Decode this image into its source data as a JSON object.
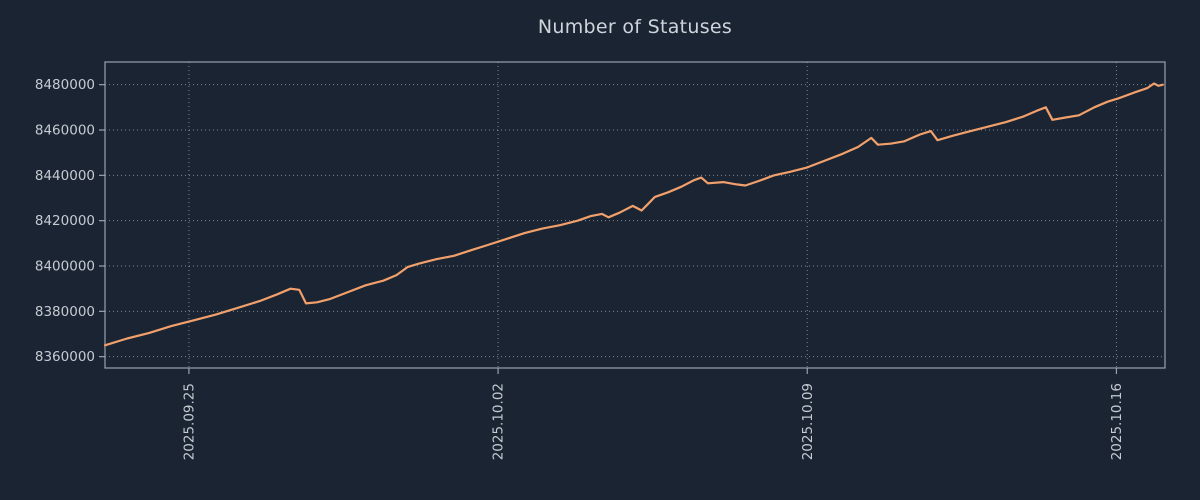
{
  "chart_data": {
    "type": "line",
    "title": "Number of Statuses",
    "xlabel": "",
    "ylabel": "",
    "legend": null,
    "grid": "dotted",
    "colors": {
      "background": "#1a2433",
      "line": "#f2a06b",
      "grid": "#e1e7ee",
      "frame": "#9aa2ac",
      "text": "#c6cbd2"
    },
    "ylim": [
      8355000,
      8490000
    ],
    "xlim_days": [
      -1.9,
      22.1
    ],
    "y_ticks": [
      8360000,
      8380000,
      8400000,
      8420000,
      8440000,
      8460000,
      8480000
    ],
    "x_ticks": [
      {
        "label": "2025.09.25",
        "day": 0
      },
      {
        "label": "2025.10.02",
        "day": 7
      },
      {
        "label": "2025.10.09",
        "day": 14
      },
      {
        "label": "2025.10.16",
        "day": 21
      }
    ],
    "points": [
      [
        -1.9,
        8365000
      ],
      [
        -1.4,
        8368000
      ],
      [
        -0.9,
        8370500
      ],
      [
        -0.4,
        8373500
      ],
      [
        0.1,
        8376000
      ],
      [
        0.6,
        8378500
      ],
      [
        1.1,
        8381500
      ],
      [
        1.6,
        8384500
      ],
      [
        2.0,
        8387500
      ],
      [
        2.3,
        8390000
      ],
      [
        2.5,
        8389500
      ],
      [
        2.65,
        8383500
      ],
      [
        2.9,
        8384000
      ],
      [
        3.2,
        8385500
      ],
      [
        3.6,
        8388500
      ],
      [
        4.0,
        8391500
      ],
      [
        4.4,
        8393500
      ],
      [
        4.7,
        8396000
      ],
      [
        4.95,
        8399500
      ],
      [
        5.2,
        8401000
      ],
      [
        5.6,
        8403000
      ],
      [
        6.0,
        8404500
      ],
      [
        6.4,
        8407000
      ],
      [
        6.8,
        8409500
      ],
      [
        7.2,
        8412000
      ],
      [
        7.6,
        8414500
      ],
      [
        8.0,
        8416500
      ],
      [
        8.4,
        8418000
      ],
      [
        8.8,
        8420000
      ],
      [
        9.1,
        8422000
      ],
      [
        9.35,
        8423000
      ],
      [
        9.5,
        8421500
      ],
      [
        9.75,
        8423500
      ],
      [
        10.05,
        8426500
      ],
      [
        10.25,
        8424500
      ],
      [
        10.4,
        8427500
      ],
      [
        10.55,
        8430500
      ],
      [
        10.85,
        8432500
      ],
      [
        11.15,
        8435000
      ],
      [
        11.45,
        8438000
      ],
      [
        11.6,
        8439000
      ],
      [
        11.75,
        8436500
      ],
      [
        12.1,
        8437000
      ],
      [
        12.4,
        8436000
      ],
      [
        12.6,
        8435500
      ],
      [
        12.9,
        8437500
      ],
      [
        13.25,
        8440000
      ],
      [
        13.6,
        8441500
      ],
      [
        14.0,
        8443500
      ],
      [
        14.4,
        8446500
      ],
      [
        14.8,
        8449500
      ],
      [
        15.15,
        8452500
      ],
      [
        15.45,
        8456500
      ],
      [
        15.6,
        8453500
      ],
      [
        15.9,
        8454000
      ],
      [
        16.2,
        8455000
      ],
      [
        16.55,
        8458000
      ],
      [
        16.8,
        8459500
      ],
      [
        16.95,
        8455500
      ],
      [
        17.3,
        8457500
      ],
      [
        17.7,
        8459500
      ],
      [
        18.1,
        8461500
      ],
      [
        18.5,
        8463500
      ],
      [
        18.9,
        8466000
      ],
      [
        19.2,
        8468500
      ],
      [
        19.4,
        8470000
      ],
      [
        19.55,
        8464500
      ],
      [
        19.85,
        8465500
      ],
      [
        20.15,
        8466500
      ],
      [
        20.5,
        8470000
      ],
      [
        20.8,
        8472500
      ],
      [
        21.05,
        8474000
      ],
      [
        21.4,
        8476500
      ],
      [
        21.7,
        8478500
      ],
      [
        21.85,
        8480500
      ],
      [
        21.95,
        8479500
      ],
      [
        22.05,
        8480000
      ]
    ]
  }
}
